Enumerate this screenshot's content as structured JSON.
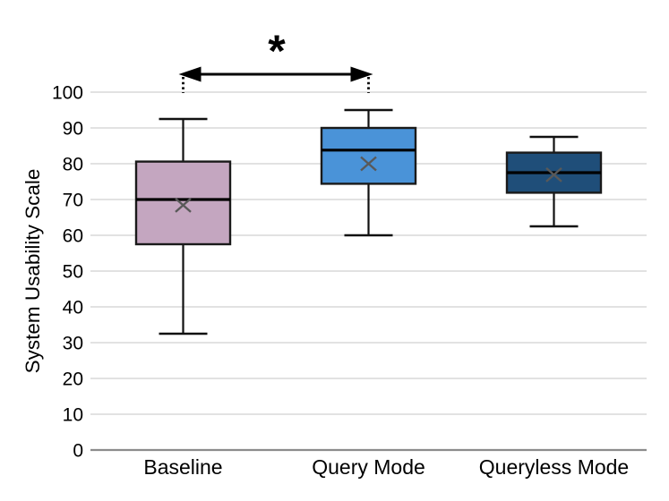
{
  "chart_data": {
    "type": "box",
    "title": "",
    "ylabel": "System Usability Scale",
    "xlabel": "",
    "ylim": [
      0,
      100
    ],
    "ytick_step": 10,
    "ytick_values": [
      0,
      10,
      20,
      30,
      40,
      50,
      60,
      70,
      80,
      90,
      100
    ],
    "grid": true,
    "legend": "none",
    "categories": [
      "Baseline",
      "Query Mode",
      "Queryless Mode"
    ],
    "series": [
      {
        "name": "Baseline",
        "min": 32.5,
        "q1": 57.5,
        "median": 70.0,
        "q3": 80.6,
        "max": 92.5,
        "mean": 68.4,
        "fill": "#c4a6c0"
      },
      {
        "name": "Query Mode",
        "min": 60.0,
        "q1": 74.4,
        "median": 83.8,
        "q3": 90.0,
        "max": 95.0,
        "mean": 80.0,
        "fill": "#4a93d8"
      },
      {
        "name": "Queryless Mode",
        "min": 62.5,
        "q1": 71.9,
        "median": 77.5,
        "q3": 83.1,
        "max": 87.5,
        "mean": 76.9,
        "fill": "#1f4e79"
      }
    ],
    "mean_marker": "x",
    "mean_marker_color": "#595959",
    "annotation": {
      "label": "*",
      "type": "significance-double-arrow",
      "between": [
        "Baseline",
        "Query Mode"
      ]
    },
    "colors": {
      "background": "#ffffff",
      "gridline": "#d9d9d9",
      "axis_line": "#8c8c8c",
      "box_border": "#1a1a1a",
      "median_line": "#000000",
      "whisker": "#111111",
      "annotation": "#000000",
      "text": "#000000"
    }
  }
}
